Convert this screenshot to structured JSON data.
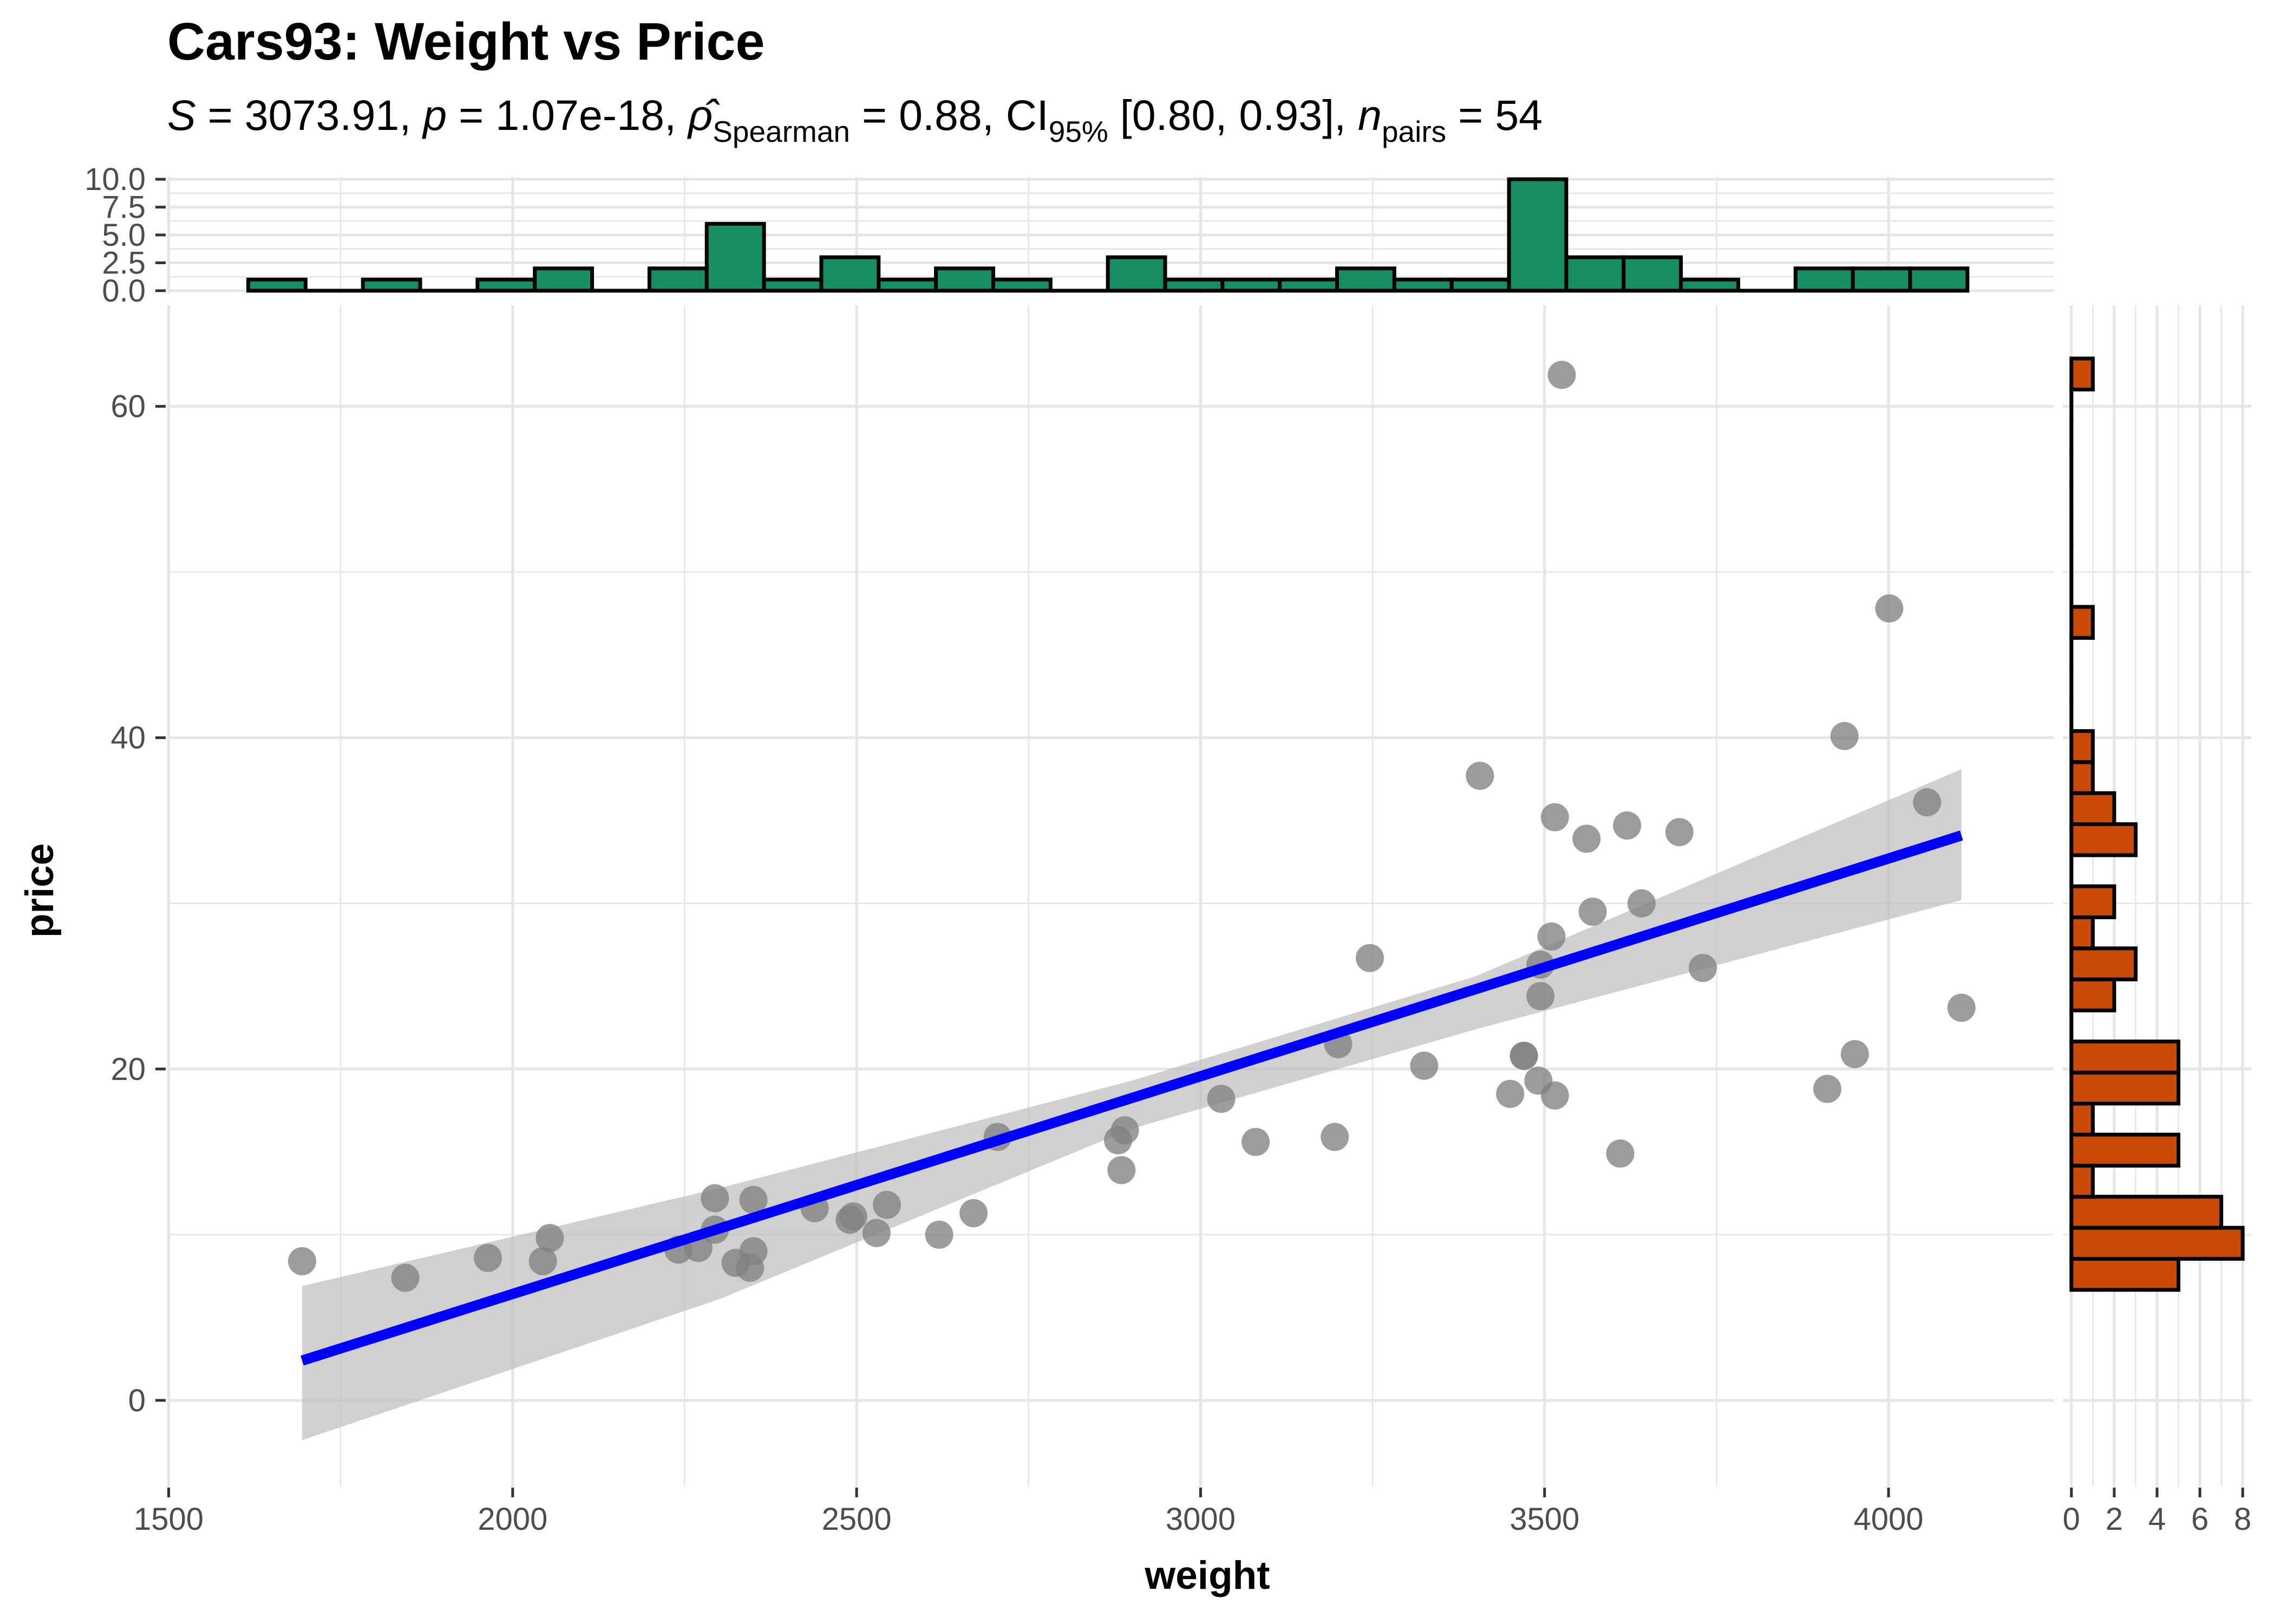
{
  "chart_data": {
    "type": "scatter",
    "title": "Cars93: Weight vs Price",
    "subtitle": {
      "S": "3073.91",
      "p": "1.07e-18",
      "rho_label": "Spearman",
      "rho": "0.88",
      "ci_label": "95%",
      "ci": "[0.80, 0.93]",
      "n_label": "pairs",
      "n": "54"
    },
    "xlabel": "weight",
    "ylabel": "price",
    "xlim": [
      1498,
      4240
    ],
    "ylim": [
      -5.2,
      66.1
    ],
    "x_ticks": [
      1500,
      2000,
      2500,
      3000,
      3500,
      4000
    ],
    "x_tick_labels": [
      "1500",
      "2000",
      "2500",
      "3000",
      "3500",
      "4000"
    ],
    "y_ticks": [
      0,
      20,
      40,
      60
    ],
    "y_tick_labels": [
      "0",
      "20",
      "40",
      "60"
    ],
    "grid": true,
    "points": [
      [
        1694,
        8.4
      ],
      [
        1844,
        7.4
      ],
      [
        1964,
        8.6
      ],
      [
        2044,
        8.4
      ],
      [
        2054,
        9.8
      ],
      [
        2241,
        9.1
      ],
      [
        2270,
        9.2
      ],
      [
        2294,
        12.2
      ],
      [
        2294,
        10.3
      ],
      [
        2350,
        12.1
      ],
      [
        2350,
        9.0
      ],
      [
        2324,
        8.3
      ],
      [
        2345,
        8.0
      ],
      [
        2439,
        11.6
      ],
      [
        2490,
        10.9
      ],
      [
        2495,
        11.1
      ],
      [
        2544,
        11.8
      ],
      [
        2529,
        10.1
      ],
      [
        2620,
        10.0
      ],
      [
        2670,
        11.3
      ],
      [
        2705,
        15.9
      ],
      [
        2890,
        16.3
      ],
      [
        2880,
        15.7
      ],
      [
        2885,
        13.9
      ],
      [
        3030,
        18.2
      ],
      [
        3080,
        15.6
      ],
      [
        3195,
        15.9
      ],
      [
        3200,
        21.5
      ],
      [
        3246,
        26.7
      ],
      [
        3325,
        20.2
      ],
      [
        3470,
        20.8
      ],
      [
        3470,
        20.8
      ],
      [
        3450,
        18.5
      ],
      [
        3491,
        19.3
      ],
      [
        3515,
        18.4
      ],
      [
        3610,
        14.9
      ],
      [
        3494,
        24.4
      ],
      [
        3494,
        26.3
      ],
      [
        3510,
        28.0
      ],
      [
        3730,
        26.1
      ],
      [
        3406,
        37.7
      ],
      [
        3515,
        35.2
      ],
      [
        3561,
        33.9
      ],
      [
        3620,
        34.7
      ],
      [
        3696,
        34.3
      ],
      [
        3936,
        40.1
      ],
      [
        4001,
        47.8
      ],
      [
        4056,
        36.1
      ],
      [
        3570,
        29.5
      ],
      [
        3641,
        30.0
      ],
      [
        3525,
        61.9
      ],
      [
        3911,
        18.8
      ],
      [
        3951,
        20.9
      ],
      [
        4106,
        23.7
      ]
    ],
    "point_color": "#808080",
    "regression": {
      "method": "lm",
      "x_range": [
        1694,
        4106
      ],
      "fit": [
        [
          1694,
          2.4
        ],
        [
          4106,
          34.1
        ]
      ],
      "ci_upper": [
        [
          1694,
          6.9
        ],
        [
          2300,
          12.8
        ],
        [
          2900,
          19.3
        ],
        [
          3400,
          25.6
        ],
        [
          4106,
          38.1
        ]
      ],
      "ci_lower": [
        [
          1694,
          -2.4
        ],
        [
          2300,
          6.1
        ],
        [
          2900,
          16.4
        ],
        [
          3400,
          22.4
        ],
        [
          4106,
          30.2
        ]
      ],
      "line_color": "#0000ff",
      "ribbon_color": "#bebebe"
    },
    "x_histogram": {
      "fill": "#168e62",
      "y_ticks": [
        0.0,
        2.5,
        5.0,
        7.5,
        10.0
      ],
      "y_tick_labels": [
        "0.0",
        "2.5",
        "5.0",
        "7.5",
        "10.0"
      ],
      "ylim": [
        0,
        10.2
      ],
      "bin_start": 1615.7,
      "bin_width": 83.3,
      "counts": [
        1,
        0,
        1,
        0,
        1,
        2,
        0,
        2,
        6,
        1,
        3,
        1,
        2,
        1,
        0,
        3,
        1,
        1,
        1,
        2,
        1,
        1,
        10,
        3,
        3,
        1,
        0,
        2,
        2,
        2
      ]
    },
    "y_histogram": {
      "fill": "#c94a05",
      "x_ticks": [
        0,
        2,
        4,
        6,
        8
      ],
      "x_tick_labels": [
        "0",
        "2",
        "4",
        "6",
        "8"
      ],
      "xlim": [
        -0.4,
        8.4
      ],
      "bin_start": 6.67,
      "bin_width": 1.874,
      "counts": [
        5,
        8,
        7,
        1,
        5,
        1,
        5,
        5,
        0,
        2,
        3,
        1,
        2,
        0,
        3,
        2,
        1,
        1,
        0,
        0,
        0,
        1,
        0,
        0,
        0,
        0,
        0,
        0,
        0,
        1
      ]
    }
  }
}
